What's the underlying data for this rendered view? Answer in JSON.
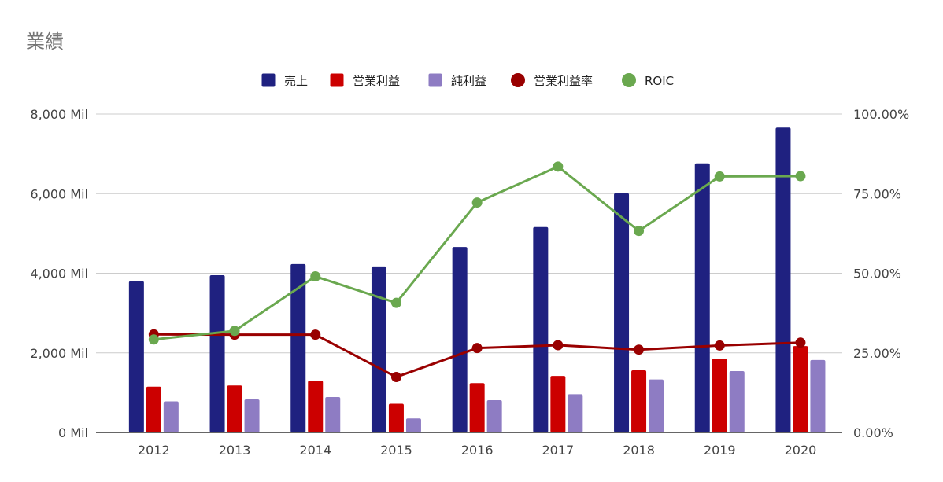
{
  "chart_data": {
    "type": "bar",
    "title": "業績",
    "categories": [
      "2012",
      "2013",
      "2014",
      "2015",
      "2016",
      "2017",
      "2018",
      "2019",
      "2020"
    ],
    "y_left": {
      "ticks": [
        0,
        2000,
        4000,
        6000,
        8000
      ],
      "tick_labels": [
        "0 Mil",
        "2,000 Mil",
        "4,000 Mil",
        "6,000 Mil",
        "8,000 Mil"
      ],
      "ylim": [
        0,
        8000
      ]
    },
    "y_right": {
      "ticks": [
        0,
        25,
        50,
        75,
        100
      ],
      "tick_labels": [
        "0.00%",
        "25.00%",
        "50.00%",
        "75.00%",
        "100.00%"
      ],
      "ylim": [
        0,
        100
      ]
    },
    "grid": true,
    "legend_position": "top",
    "series": [
      {
        "name": "売上",
        "type": "bar",
        "axis": "left",
        "color": "#1f2180",
        "values": [
          3800,
          3950,
          4230,
          4170,
          4660,
          5160,
          6010,
          6760,
          7660
        ]
      },
      {
        "name": "営業利益",
        "type": "bar",
        "axis": "left",
        "color": "#cc0000",
        "values": [
          1150,
          1180,
          1300,
          720,
          1240,
          1420,
          1560,
          1850,
          2170
        ]
      },
      {
        "name": "純利益",
        "type": "bar",
        "axis": "left",
        "color": "#8e7cc3",
        "values": [
          780,
          830,
          890,
          350,
          810,
          960,
          1330,
          1540,
          1820
        ]
      },
      {
        "name": "営業利益率",
        "type": "line",
        "axis": "right",
        "color": "#990000",
        "values": [
          30.8,
          30.7,
          30.7,
          17.4,
          26.5,
          27.4,
          26.0,
          27.3,
          28.2
        ]
      },
      {
        "name": "ROIC",
        "type": "line",
        "axis": "right",
        "color": "#6aa84f",
        "values": [
          29.2,
          31.9,
          49.0,
          40.7,
          72.2,
          83.5,
          63.3,
          80.4,
          80.5
        ]
      }
    ]
  }
}
